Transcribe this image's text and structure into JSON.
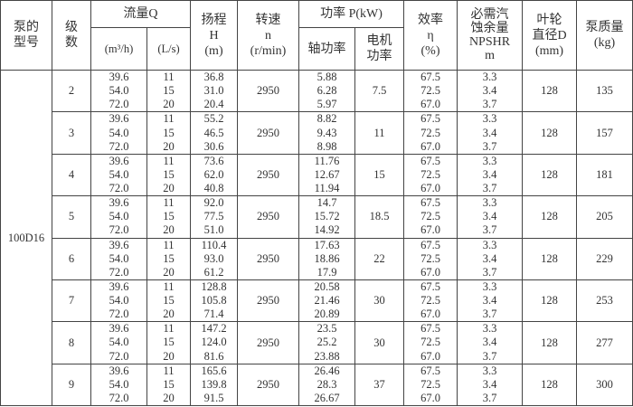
{
  "headers": {
    "pump_model": "泵的\n型号",
    "stage": "级\n数",
    "flow": "流量Q",
    "flow_m3h": "(m³/h)",
    "flow_ls": "(L/s)",
    "head": "扬程\nH\n(m)",
    "speed": "转速\nn\n(r/min)",
    "power": "功率 P(kW)",
    "shaft_power": "轴功率",
    "motor_power": "电机\n功率",
    "efficiency": "效率\nη\n(%)",
    "npshr": "必需汽\n蚀余量\nNPSHR\nm",
    "impeller": "叶轮\n直径D\n(mm)",
    "mass": "泵质量\n(kg)"
  },
  "pump_model": "100D16",
  "rows": [
    {
      "stage": "2",
      "q_m3h": [
        "39.6",
        "54.0",
        "72.0"
      ],
      "q_ls": [
        "11",
        "15",
        "20"
      ],
      "head": [
        "36.8",
        "31.0",
        "20.4"
      ],
      "speed": "2950",
      "shaft": [
        "5.88",
        "6.28",
        "5.97"
      ],
      "motor": "7.5",
      "eff": [
        "67.5",
        "72.5",
        "67.0"
      ],
      "npshr": [
        "3.3",
        "3.4",
        "3.7"
      ],
      "impeller": "128",
      "mass": "135"
    },
    {
      "stage": "3",
      "q_m3h": [
        "39.6",
        "54.0",
        "72.0"
      ],
      "q_ls": [
        "11",
        "15",
        "20"
      ],
      "head": [
        "55.2",
        "46.5",
        "30.6"
      ],
      "speed": "2950",
      "shaft": [
        "8.82",
        "9.43",
        "8.98"
      ],
      "motor": "11",
      "eff": [
        "67.5",
        "72.5",
        "67.0"
      ],
      "npshr": [
        "3.3",
        "3.4",
        "3.7"
      ],
      "impeller": "128",
      "mass": "157"
    },
    {
      "stage": "4",
      "q_m3h": [
        "39.6",
        "54.0",
        "72.0"
      ],
      "q_ls": [
        "11",
        "15",
        "20"
      ],
      "head": [
        "73.6",
        "62.0",
        "40.8"
      ],
      "speed": "2950",
      "shaft": [
        "11.76",
        "12.67",
        "11.94"
      ],
      "motor": "15",
      "eff": [
        "67.5",
        "72.5",
        "67.0"
      ],
      "npshr": [
        "3.3",
        "3.4",
        "3.7"
      ],
      "impeller": "128",
      "mass": "181"
    },
    {
      "stage": "5",
      "q_m3h": [
        "39.6",
        "54.0",
        "72.0"
      ],
      "q_ls": [
        "11",
        "15",
        "20"
      ],
      "head": [
        "92.0",
        "77.5",
        "51.0"
      ],
      "speed": "2950",
      "shaft": [
        "14.7",
        "15.72",
        "14.92"
      ],
      "motor": "18.5",
      "eff": [
        "67.5",
        "72.5",
        "67.0"
      ],
      "npshr": [
        "3.3",
        "3.4",
        "3.7"
      ],
      "impeller": "128",
      "mass": "205"
    },
    {
      "stage": "6",
      "q_m3h": [
        "39.6",
        "54.0",
        "72.0"
      ],
      "q_ls": [
        "11",
        "15",
        "20"
      ],
      "head": [
        "110.4",
        "93.0",
        "61.2"
      ],
      "speed": "2950",
      "shaft": [
        "17.63",
        "18.86",
        "17.9"
      ],
      "motor": "22",
      "eff": [
        "67.5",
        "72.5",
        "67.0"
      ],
      "npshr": [
        "3.3",
        "3.4",
        "3.7"
      ],
      "impeller": "128",
      "mass": "229"
    },
    {
      "stage": "7",
      "q_m3h": [
        "39.6",
        "54.0",
        "72.0"
      ],
      "q_ls": [
        "11",
        "15",
        "20"
      ],
      "head": [
        "128.8",
        "105.8",
        "71.4"
      ],
      "speed": "2950",
      "shaft": [
        "20.58",
        "21.46",
        "20.89"
      ],
      "motor": "30",
      "eff": [
        "67.5",
        "72.5",
        "67.0"
      ],
      "npshr": [
        "3.3",
        "3.4",
        "3.7"
      ],
      "impeller": "128",
      "mass": "253"
    },
    {
      "stage": "8",
      "q_m3h": [
        "39.6",
        "54.0",
        "72.0"
      ],
      "q_ls": [
        "11",
        "15",
        "20"
      ],
      "head": [
        "147.2",
        "124.0",
        "81.6"
      ],
      "speed": "2950",
      "shaft": [
        "23.5",
        "25.2",
        "23.88"
      ],
      "motor": "30",
      "eff": [
        "67.5",
        "72.5",
        "67.0"
      ],
      "npshr": [
        "3.3",
        "3.4",
        "3.7"
      ],
      "impeller": "128",
      "mass": "277"
    },
    {
      "stage": "9",
      "q_m3h": [
        "39.6",
        "54.0",
        "72.0"
      ],
      "q_ls": [
        "11",
        "15",
        "20"
      ],
      "head": [
        "165.6",
        "139.8",
        "91.5"
      ],
      "speed": "2950",
      "shaft": [
        "26.46",
        "28.3",
        "26.67"
      ],
      "motor": "37",
      "eff": [
        "67.5",
        "72.5",
        "67.0"
      ],
      "npshr": [
        "3.3",
        "3.4",
        "3.7"
      ],
      "impeller": "128",
      "mass": "300"
    }
  ]
}
